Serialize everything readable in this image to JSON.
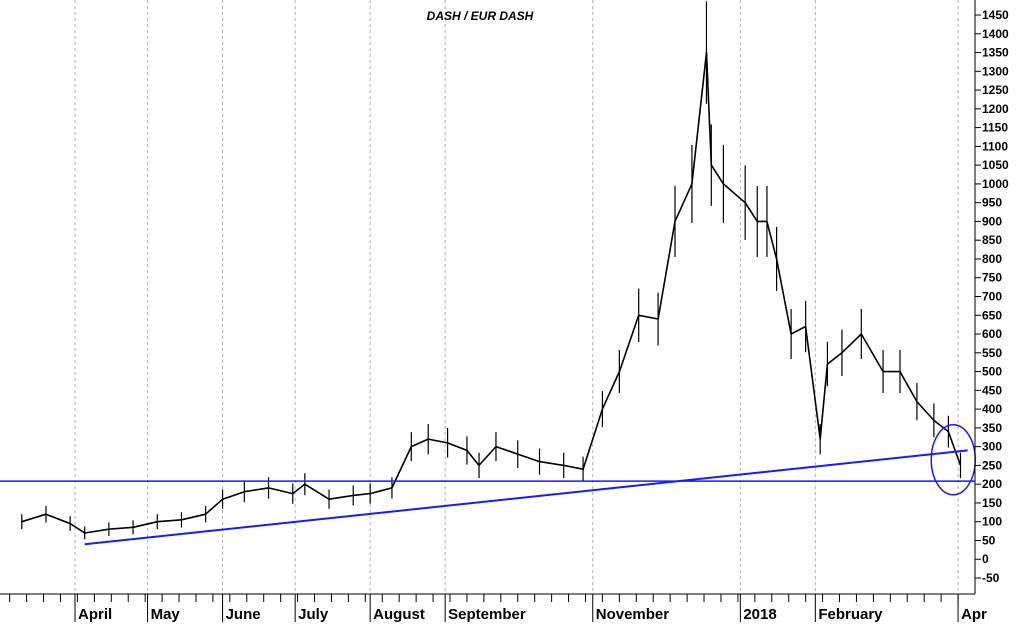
{
  "chart_data": {
    "type": "line",
    "title": "DASH / EUR DASH",
    "xlabel": "",
    "ylabel": "",
    "ylim": [
      -70,
      1470
    ],
    "y_axis_position": "right",
    "y_ticks": [
      -50,
      0,
      50,
      100,
      150,
      200,
      250,
      300,
      350,
      400,
      450,
      500,
      550,
      600,
      650,
      700,
      750,
      800,
      850,
      900,
      950,
      1000,
      1050,
      1100,
      1150,
      1200,
      1250,
      1300,
      1350,
      1400,
      1450
    ],
    "x_ticks": [
      "April",
      "May",
      "June",
      "July",
      "August",
      "September",
      "November",
      "2018",
      "February",
      "Apr"
    ],
    "grid": "vertical dotted",
    "colors": {
      "price": "#000000",
      "trendline": "#1a1aff"
    },
    "series": [
      {
        "x": [
          "2017-03-10",
          "2017-03-20",
          "2017-03-30",
          "2017-04-05",
          "2017-04-15",
          "2017-04-25",
          "2017-05-05",
          "2017-05-15",
          "2017-05-25",
          "2017-06-01",
          "2017-06-10",
          "2017-06-20",
          "2017-06-30",
          "2017-07-05",
          "2017-07-15",
          "2017-07-25",
          "2017-08-01",
          "2017-08-10",
          "2017-08-18",
          "2017-08-25",
          "2017-09-02",
          "2017-09-10",
          "2017-09-15",
          "2017-09-22",
          "2017-10-01",
          "2017-10-10",
          "2017-10-20",
          "2017-10-28",
          "2017-11-05",
          "2017-11-12",
          "2017-11-20",
          "2017-11-28",
          "2017-12-05",
          "2017-12-12",
          "2017-12-18",
          "2017-12-20",
          "2017-12-25",
          "2018-01-03",
          "2018-01-08",
          "2018-01-12",
          "2018-01-16",
          "2018-01-22",
          "2018-01-28",
          "2018-02-03",
          "2018-02-06",
          "2018-02-12",
          "2018-02-20",
          "2018-03-01",
          "2018-03-08",
          "2018-03-15",
          "2018-03-22",
          "2018-03-28",
          "2018-04-02"
        ],
        "values": [
          100,
          120,
          95,
          70,
          80,
          85,
          100,
          105,
          120,
          160,
          180,
          190,
          175,
          200,
          160,
          170,
          175,
          190,
          300,
          320,
          310,
          290,
          250,
          300,
          280,
          260,
          250,
          240,
          400,
          500,
          650,
          640,
          900,
          1000,
          1350,
          1050,
          1000,
          950,
          900,
          900,
          800,
          600,
          620,
          320,
          520,
          550,
          600,
          500,
          500,
          420,
          370,
          340,
          250
        ]
      }
    ],
    "reference_lines": [
      {
        "kind": "horizontal",
        "y": 208
      },
      {
        "kind": "trend",
        "from": [
          "2017-04-05",
          40
        ],
        "to": [
          "2018-04-05",
          290
        ]
      }
    ],
    "annotations": [
      {
        "kind": "circle",
        "x": "2018-03-30",
        "y": 265
      }
    ]
  }
}
